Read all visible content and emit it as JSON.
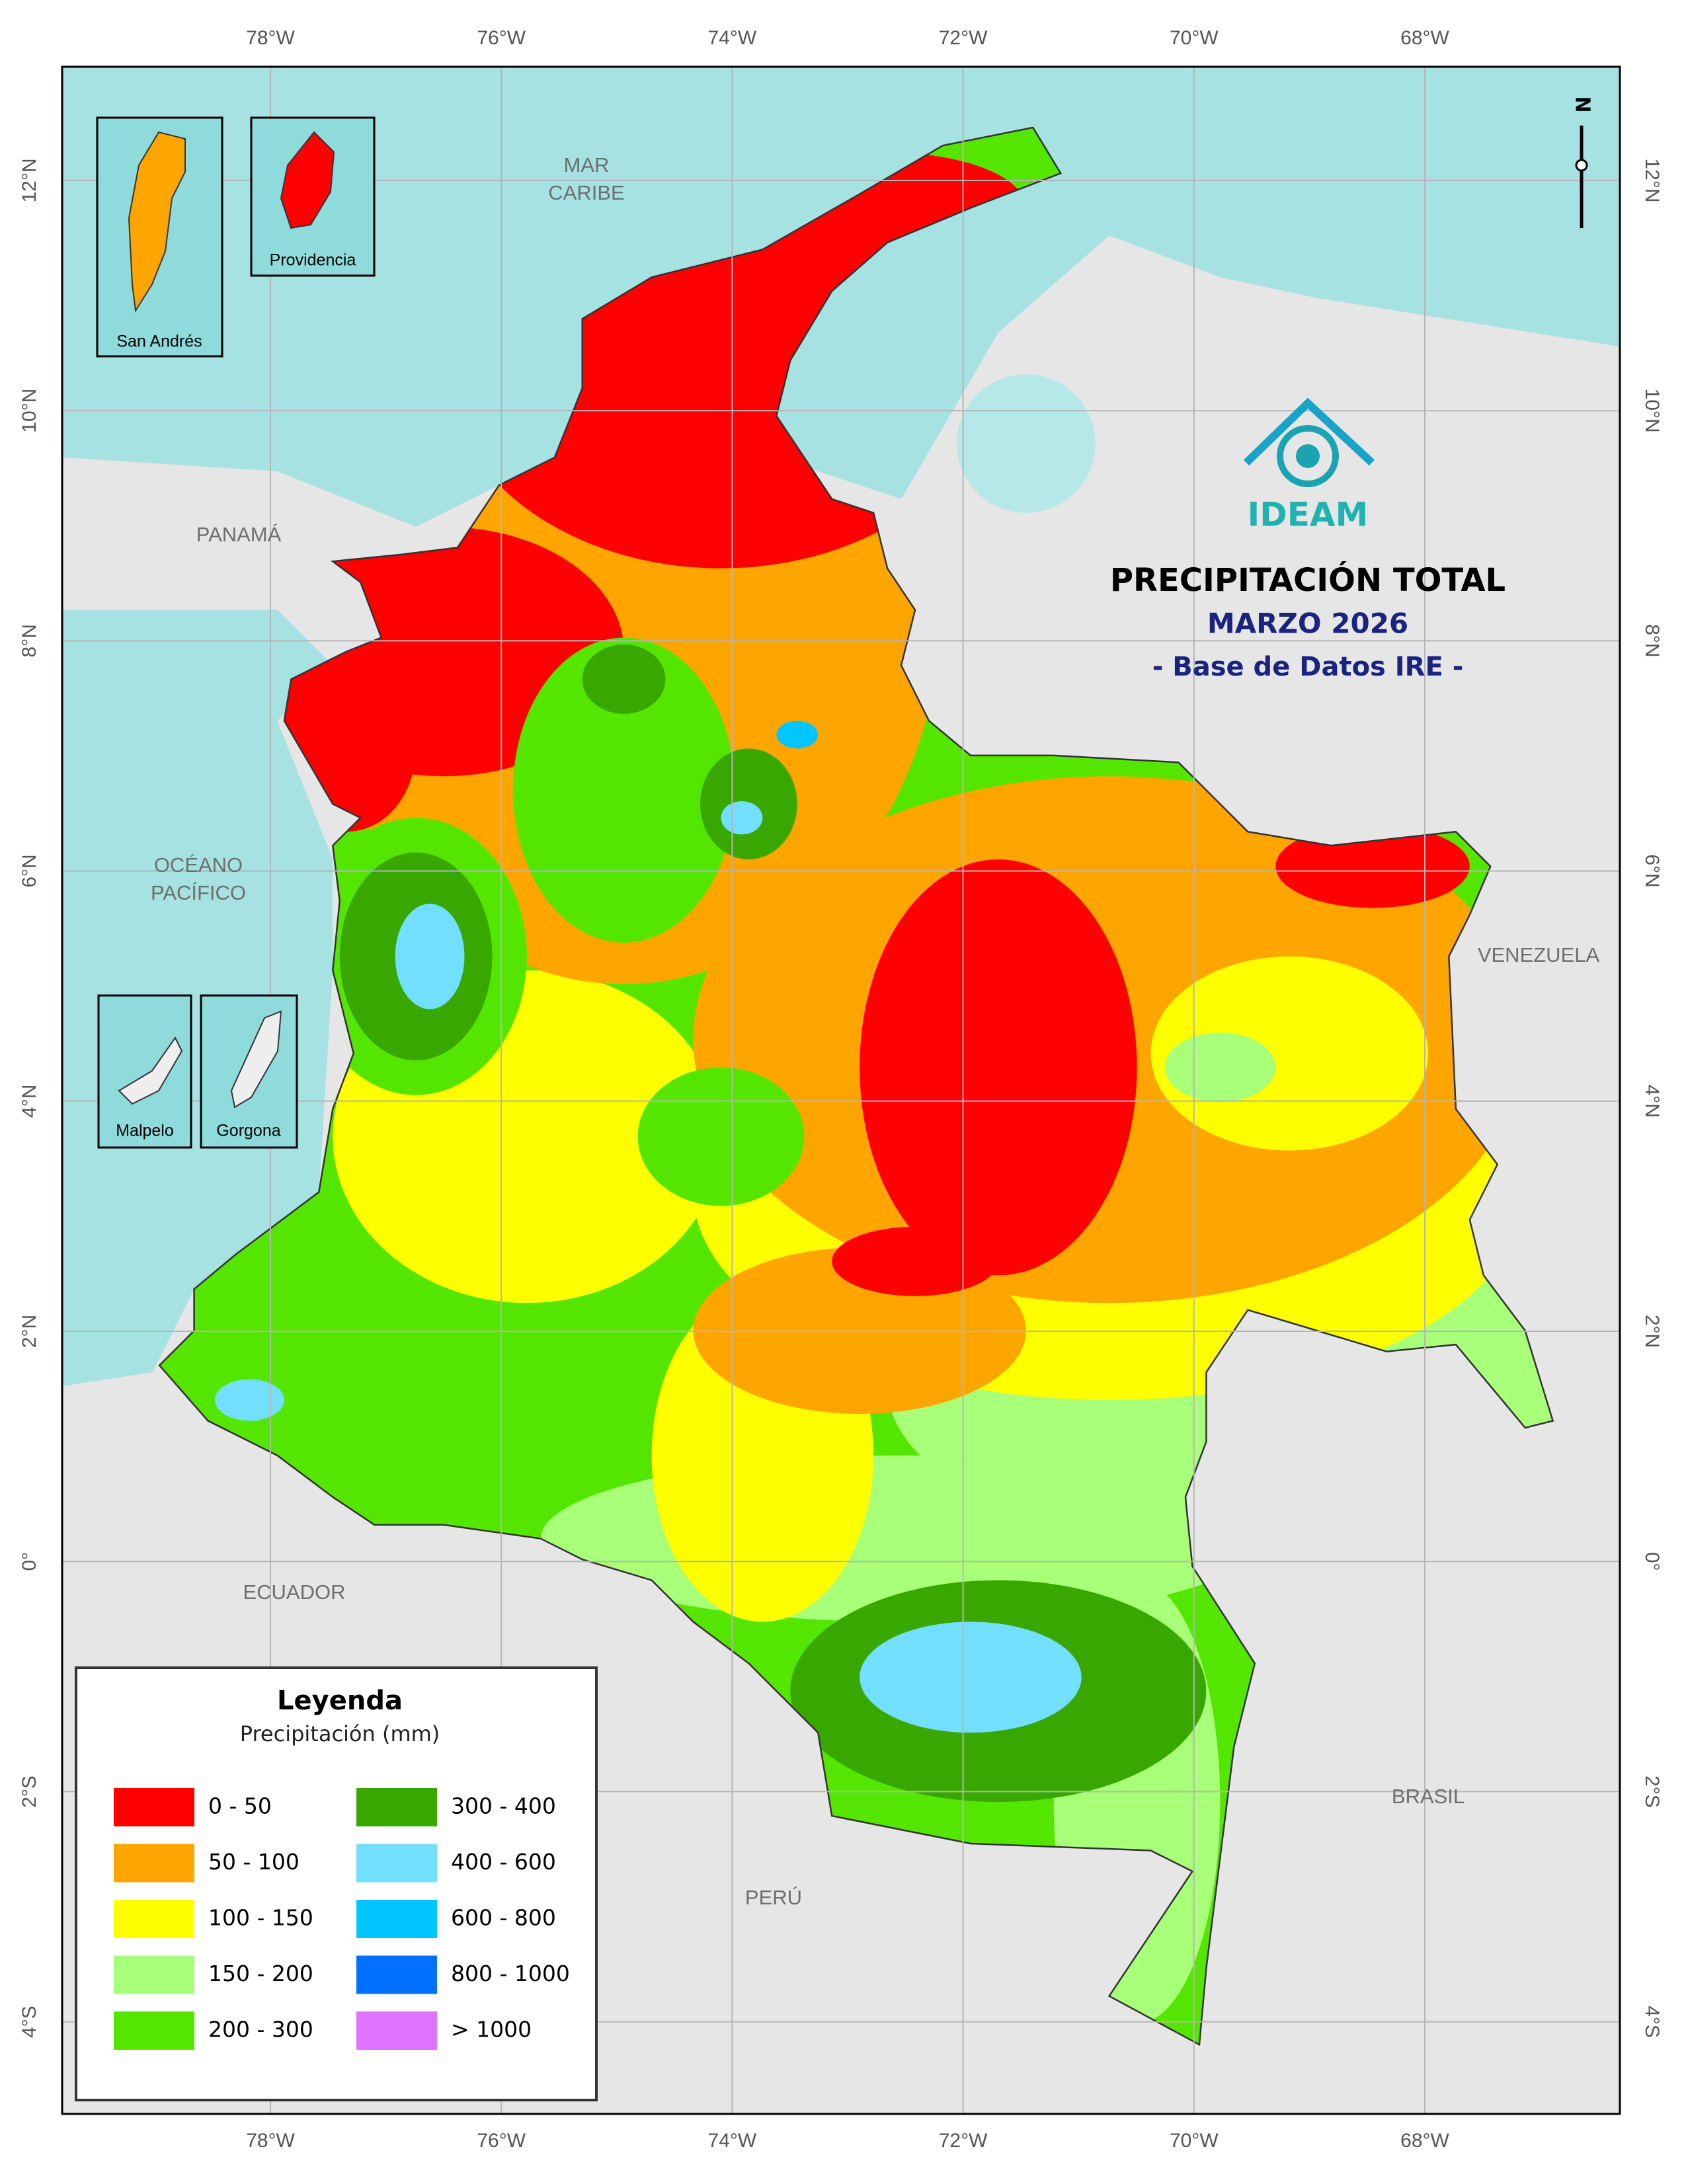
{
  "map": {
    "title": "PRECIPITACIÓN TOTAL",
    "subtitle": "MARZO 2026",
    "source": "- Base de Datos IRE -",
    "logo": "IDEAM",
    "north": "N",
    "longitude_labels": [
      "78°W",
      "76°W",
      "74°W",
      "72°W",
      "70°W",
      "68°W"
    ],
    "latitude_labels": [
      "12°N",
      "10°N",
      "8°N",
      "6°N",
      "4°N",
      "2°N",
      "0°",
      "2°S",
      "4°S"
    ],
    "places": [
      {
        "lines": [
          "MAR",
          "CARIBE"
        ]
      },
      {
        "lines": [
          "OCÉANO",
          "PACÍFICO"
        ]
      },
      {
        "lines": [
          "PANAMÁ"
        ]
      },
      {
        "lines": [
          "VENEZUELA"
        ]
      },
      {
        "lines": [
          "ECUADOR"
        ]
      },
      {
        "lines": [
          "BRASIL"
        ]
      },
      {
        "lines": [
          "PERÚ"
        ]
      }
    ],
    "insets": [
      "San Andrés",
      "Providencia",
      "Malpelo",
      "Gorgona"
    ],
    "legend": {
      "title": "Leyenda",
      "subtitle": "Precipitación (mm)",
      "items": [
        {
          "label": "0 - 50",
          "color": "#ff0000"
        },
        {
          "label": "50 - 100",
          "color": "#ffa500"
        },
        {
          "label": "100 - 150",
          "color": "#ffff00"
        },
        {
          "label": "150 - 200",
          "color": "#a8ff78"
        },
        {
          "label": "200 - 300",
          "color": "#55e600"
        },
        {
          "label": "300 - 400",
          "color": "#38a800"
        },
        {
          "label": "400 - 600",
          "color": "#73dfff"
        },
        {
          "label": "600 - 800",
          "color": "#00c5ff"
        },
        {
          "label": "800 - 1000",
          "color": "#0070ff"
        },
        {
          "label": "> 1000",
          "color": "#df73ff"
        }
      ]
    }
  }
}
